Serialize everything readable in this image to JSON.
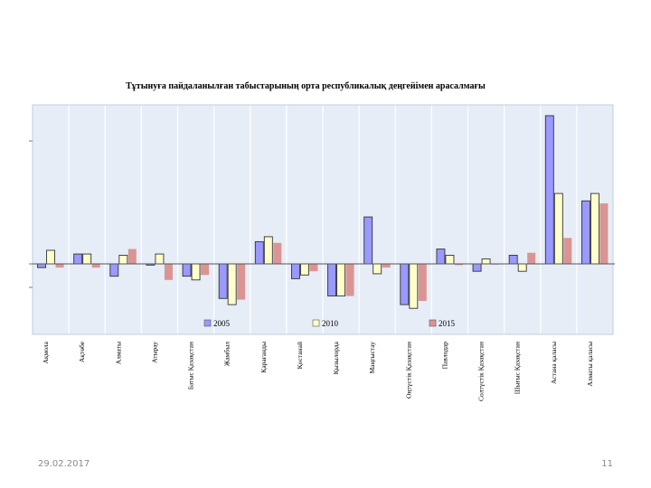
{
  "slide": {
    "date": "29.02.2017",
    "page_number": "11"
  },
  "colors": {
    "plot_background": "#e6edf7",
    "grid": "#ffffff",
    "series": [
      "#9999ff",
      "#ffffcc",
      "#d99594"
    ]
  },
  "chart_data": {
    "type": "bar",
    "title": "Тұтынуға пайдаланылған табыстарының орта республикалық деңгейімен арасалмағы",
    "xlabel": "",
    "ylabel": "",
    "grid": true,
    "legend_position": "bottom",
    "ylim": [
      -5.5,
      12
    ],
    "categories": [
      "Ақмола",
      "Ақтөбе",
      "Алматы",
      "Атырау",
      "Батыс Қазақстан",
      "Жамбыл",
      "Қарағанды",
      "Қостанай",
      "Қызылорда",
      "Маңғыстау",
      "Оңтүстік Қазақстан",
      "Павлодар",
      "Солтүстік Қазақстан",
      "Шығыс Қазақстан",
      "Астана қаласы",
      "Алматы қаласы"
    ],
    "series": [
      {
        "name": "2005",
        "values": [
          -0.3,
          0.8,
          -1.0,
          -0.1,
          -1.0,
          -2.8,
          1.8,
          -1.2,
          -2.6,
          3.8,
          -3.3,
          1.2,
          -0.6,
          0.7,
          12.0,
          5.1
        ]
      },
      {
        "name": "2010",
        "values": [
          1.1,
          0.8,
          0.7,
          0.8,
          -1.3,
          -3.3,
          2.2,
          -0.9,
          -2.6,
          -0.8,
          -3.6,
          0.7,
          0.4,
          -0.6,
          5.7,
          5.7
        ]
      },
      {
        "name": "2015",
        "values": [
          -0.3,
          -0.3,
          1.2,
          -1.3,
          -0.9,
          -2.9,
          1.7,
          -0.6,
          -2.6,
          -0.3,
          -3.0,
          -0.1,
          0.0,
          0.9,
          2.1,
          4.9
        ]
      }
    ]
  }
}
